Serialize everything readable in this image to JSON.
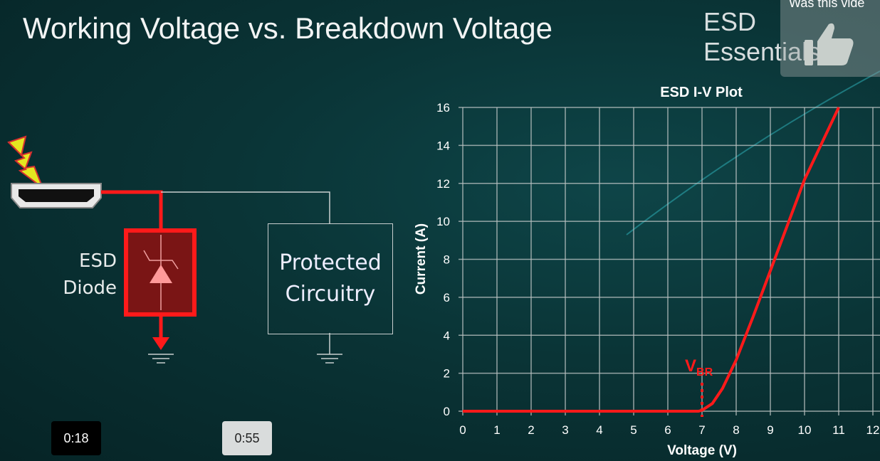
{
  "slide": {
    "title": "Working Voltage vs. Breakdown Voltage",
    "brand": "ESD Essentials",
    "diagram": {
      "diode_label_line1": "ESD",
      "diode_label_line2": "Diode",
      "protected_line1": "Protected",
      "protected_line2": "Circuitry"
    }
  },
  "player": {
    "feedback_prompt": "Was this vide",
    "feedback_icon": "thumbs-up-icon",
    "time_current": "0:18",
    "time_total": "0:55"
  },
  "colors": {
    "curve": "#ff1a1a",
    "grid": "#b8c0c0",
    "background": "#0a3436"
  },
  "chart_data": {
    "type": "line",
    "title": "ESD I-V Plot",
    "xlabel": "Voltage (V)",
    "ylabel": "Current (A)",
    "xlim": [
      0,
      12
    ],
    "ylim": [
      0,
      16
    ],
    "xticks": [
      "0",
      "1",
      "2",
      "3",
      "4",
      "5",
      "6",
      "7",
      "8",
      "9",
      "10",
      "11",
      "12"
    ],
    "yticks": [
      "0",
      "2",
      "4",
      "6",
      "8",
      "10",
      "12",
      "14",
      "16"
    ],
    "grid": true,
    "annotation": {
      "label": "V",
      "subscript": "BR",
      "x": 7
    },
    "series": [
      {
        "x": [
          0,
          6.9,
          7.0,
          7.3,
          7.6,
          8.0,
          8.5,
          9.0,
          9.5,
          10.0,
          10.5,
          11.0
        ],
        "y": [
          0,
          0,
          0.05,
          0.4,
          1.2,
          2.7,
          5.0,
          7.4,
          9.8,
          12.2,
          14.1,
          16.0
        ]
      }
    ]
  }
}
